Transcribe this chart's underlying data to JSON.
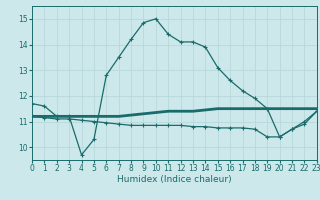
{
  "xlabel": "Humidex (Indice chaleur)",
  "xlim": [
    0,
    23
  ],
  "ylim": [
    9.5,
    15.5
  ],
  "yticks": [
    10,
    11,
    12,
    13,
    14,
    15
  ],
  "xticks": [
    0,
    1,
    2,
    3,
    4,
    5,
    6,
    7,
    8,
    9,
    10,
    11,
    12,
    13,
    14,
    15,
    16,
    17,
    18,
    19,
    20,
    21,
    22,
    23
  ],
  "bg_color": "#cce8eb",
  "grid_color": "#b8d8db",
  "line_color": "#1a6b6b",
  "line1_x": [
    0,
    1,
    2,
    3,
    4,
    5,
    6,
    7,
    8,
    9,
    10,
    11,
    12,
    13,
    14,
    15,
    16,
    17,
    18,
    19,
    20,
    21,
    22,
    23
  ],
  "line1_y": [
    11.7,
    11.6,
    11.2,
    11.2,
    9.7,
    10.3,
    12.8,
    13.5,
    14.2,
    14.85,
    15.0,
    14.4,
    14.1,
    14.1,
    13.9,
    13.1,
    12.6,
    12.2,
    11.9,
    11.5,
    10.4,
    10.7,
    11.0,
    11.4
  ],
  "line2_x": [
    0,
    1,
    2,
    3,
    4,
    5,
    6,
    7,
    8,
    9,
    10,
    11,
    12,
    13,
    14,
    15,
    16,
    17,
    18,
    19,
    20,
    21,
    22,
    23
  ],
  "line2_y": [
    11.2,
    11.2,
    11.2,
    11.2,
    11.2,
    11.2,
    11.2,
    11.2,
    11.25,
    11.3,
    11.35,
    11.4,
    11.4,
    11.4,
    11.45,
    11.5,
    11.5,
    11.5,
    11.5,
    11.5,
    11.5,
    11.5,
    11.5,
    11.5
  ],
  "line3_x": [
    0,
    1,
    2,
    3,
    4,
    5,
    6,
    7,
    8,
    9,
    10,
    11,
    12,
    13,
    14,
    15,
    16,
    17,
    18,
    19,
    20,
    21,
    22,
    23
  ],
  "line3_y": [
    11.2,
    11.15,
    11.1,
    11.1,
    11.05,
    11.0,
    10.95,
    10.9,
    10.85,
    10.85,
    10.85,
    10.85,
    10.85,
    10.8,
    10.8,
    10.75,
    10.75,
    10.75,
    10.7,
    10.4,
    10.4,
    10.7,
    10.9,
    11.4
  ]
}
